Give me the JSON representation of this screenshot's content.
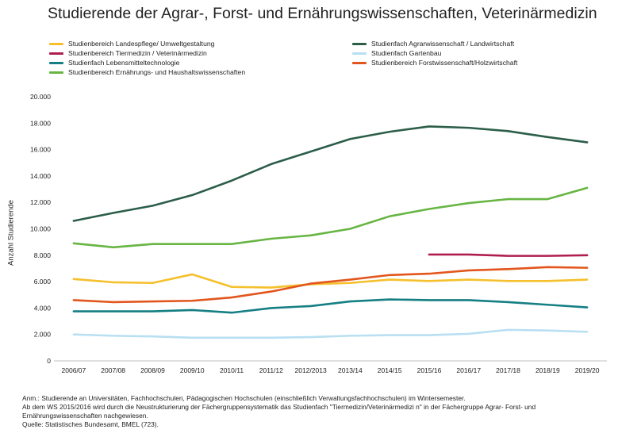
{
  "chart_data": {
    "type": "line",
    "title": "Studierende der Agrar-, Forst- und Ernährungswissenschaften, Veterinärmedizin",
    "ylabel": "Anzahl Studierende",
    "xlabel": "",
    "ylim": [
      0,
      20000
    ],
    "yticks": [
      0,
      2000,
      4000,
      6000,
      8000,
      10000,
      12000,
      14000,
      16000,
      18000,
      20000
    ],
    "ytick_labels": [
      "0",
      "2.000",
      "4.000",
      "6.000",
      "8.000",
      "10.000",
      "12.000",
      "14.000",
      "16.000",
      "18.000",
      "20.000"
    ],
    "grid": false,
    "legend_position": "top",
    "categories": [
      "2006/07",
      "2007/08",
      "2008/09",
      "2009/10",
      "2010/11",
      "2011/12",
      "2012/2013",
      "2013/14",
      "2014/15",
      "2015/16",
      "2016/17",
      "2017/18",
      "2018/19",
      "2019/20"
    ],
    "series": [
      {
        "name": "Studienbereich Landespflege/ Umweltgestaltung",
        "color": "#f5c02c",
        "values": [
          6200,
          5950,
          5900,
          6550,
          5600,
          5550,
          5800,
          5900,
          6150,
          6050,
          6150,
          6050,
          6050,
          6150
        ]
      },
      {
        "name": "Studienfach Agrarwissenschaft / Landwirtschaft",
        "color": "#2c5e4a",
        "values": [
          10600,
          11200,
          11750,
          12550,
          13650,
          14900,
          15850,
          16800,
          17350,
          17750,
          17650,
          17400,
          16950,
          16550
        ]
      },
      {
        "name": "Studienbereich Tiermedizin / Veterinärmedizin",
        "color": "#b01e4e",
        "values": [
          null,
          null,
          null,
          null,
          null,
          null,
          null,
          null,
          null,
          8050,
          8050,
          7950,
          7950,
          8000
        ]
      },
      {
        "name": "Studienfach Gartenbau",
        "color": "#b8dff2",
        "values": [
          2000,
          1900,
          1850,
          1750,
          1750,
          1750,
          1800,
          1900,
          1950,
          1950,
          2050,
          2350,
          2300,
          2200
        ]
      },
      {
        "name": "Studienfach Lebensmitteltechnologie",
        "color": "#157f84",
        "values": [
          3750,
          3750,
          3750,
          3850,
          3650,
          4000,
          4150,
          4500,
          4650,
          4600,
          4600,
          4450,
          4250,
          4050
        ]
      },
      {
        "name": "Studienbereich Forstwissenschaft/Holzwirtschaft",
        "color": "#e2561d",
        "values": [
          4600,
          4450,
          4500,
          4550,
          4800,
          5250,
          5850,
          6150,
          6500,
          6600,
          6850,
          6950,
          7100,
          7050
        ]
      },
      {
        "name": "Studienbereich Ernährungs- und Haushaltswissenschaften",
        "color": "#67b543",
        "values": [
          8900,
          8600,
          8850,
          8850,
          8850,
          9250,
          9500,
          10000,
          10950,
          11500,
          11950,
          12250,
          12250,
          13100
        ]
      }
    ]
  },
  "notes": {
    "line1": "Anm.: Studierende an Universitäten, Fachhochschulen, Pädagogischen Hochschulen (einschließlich Verwaltungsfachhochschulen) im  Wintersemester.",
    "line2": "Ab dem WS 2015/2016 wird durch die Neustrukturierung der Fächergruppensystematik das Studienfach \"Tiermedizin/Veterinärmedizi n\" in der Fächergruppe Agrar- Forst- und",
    "line3": "Ernährungswissenschaften nachgewiesen.",
    "line4": "Quelle: Statistisches Bundesamt, BMEL (723)."
  }
}
